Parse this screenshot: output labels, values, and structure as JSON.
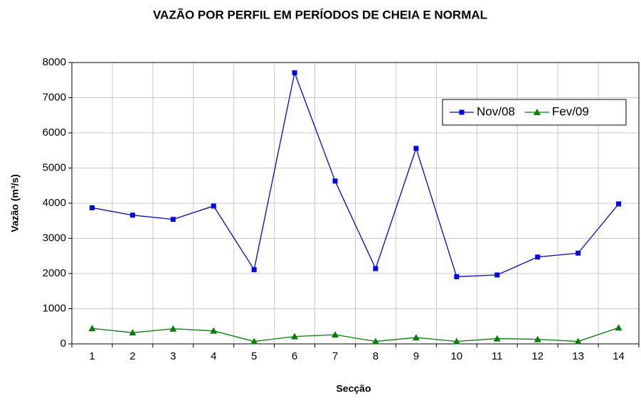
{
  "chart_data": {
    "type": "line",
    "title": "VAZÃO POR PERFIL EM PERÍODOS DE CHEIA E NORMAL",
    "x_label": "Secção",
    "y_label": "Vazão (m³/s)",
    "categories": [
      1,
      2,
      3,
      4,
      5,
      6,
      7,
      8,
      9,
      10,
      11,
      12,
      13,
      14
    ],
    "series": [
      {
        "name": "Nov/08",
        "color": "#0000ff",
        "marker": "square",
        "values": [
          3870,
          3660,
          3540,
          3920,
          2110,
          7710,
          4630,
          2140,
          5560,
          1910,
          1960,
          2470,
          2580,
          3980
        ]
      },
      {
        "name": "Fev/09",
        "color": "#008000",
        "marker": "triangle",
        "values": [
          440,
          320,
          430,
          370,
          70,
          210,
          260,
          70,
          180,
          70,
          150,
          130,
          70,
          460
        ]
      }
    ],
    "ylim": [
      0,
      8000
    ],
    "yticks": [
      0,
      1000,
      2000,
      3000,
      4000,
      5000,
      6000,
      7000,
      8000
    ],
    "grid": true,
    "legend_position": "upper right"
  }
}
